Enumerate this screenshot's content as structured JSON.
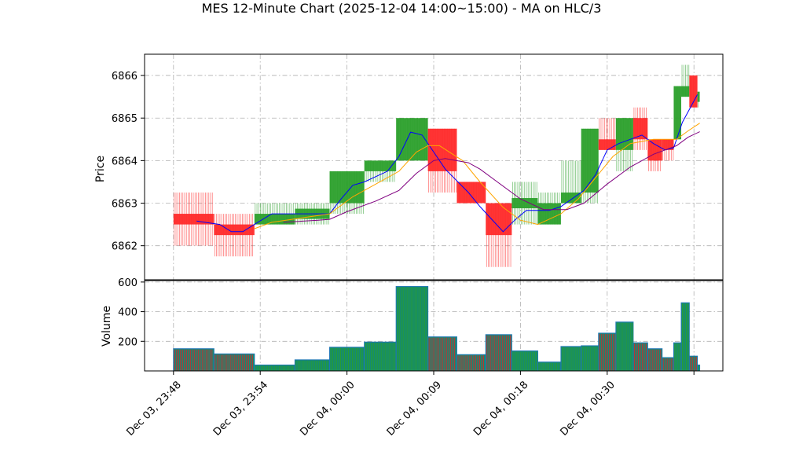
{
  "chart_data": {
    "type": "candlestick-renko-with-ma-and-volume",
    "title": "MES 12-Minute Chart (2025-12-04 14:00~15:00) - MA on HLC/3",
    "price_axis": {
      "ylabel": "Price",
      "ticks": [
        6862,
        6863,
        6864,
        6865,
        6866
      ],
      "ylim": [
        6861.2,
        6866.5
      ]
    },
    "volume_axis": {
      "ylabel": "Volume",
      "ticks": [
        200,
        400,
        600
      ],
      "ylim": [
        0,
        610
      ]
    },
    "x_axis": {
      "xlim": [
        0,
        100
      ],
      "tick_positions": [
        5,
        20,
        35,
        50,
        65,
        80,
        95
      ],
      "tick_labels": [
        "Dec 03, 23:48",
        "Dec 03, 23:54",
        "Dec 04, 00:00",
        "Dec 04, 00:09",
        "Dec 04, 00:18",
        "Dec 04, 00:30",
        ""
      ]
    },
    "colors": {
      "up": "#2ca02c",
      "down": "#ff2a2a",
      "ma_fast": "#0000ff",
      "ma_mid": "#ffa500",
      "ma_slow": "#800080",
      "vol_edge": "#1f77b4",
      "vol_up_line": "#2ca02c",
      "vol_down_line": "#d62728"
    },
    "bars": [
      {
        "x0": 5.0,
        "x1": 12.0,
        "open": 6862.75,
        "close": 6862.5,
        "high": 6863.25,
        "low": 6862.0,
        "volume": 150
      },
      {
        "x0": 12.0,
        "x1": 19.0,
        "open": 6862.5,
        "close": 6862.25,
        "high": 6862.75,
        "low": 6861.75,
        "volume": 115
      },
      {
        "x0": 19.0,
        "x1": 26.0,
        "open": 6862.5,
        "close": 6862.75,
        "high": 6863.0,
        "low": 6862.5,
        "volume": 40
      },
      {
        "x0": 26.0,
        "x1": 32.0,
        "open": 6862.75,
        "close": 6862.75,
        "high": 6863.0,
        "low": 6862.5,
        "volume": 75
      },
      {
        "x0": 32.0,
        "x1": 38.0,
        "open": 6863.0,
        "close": 6863.75,
        "high": 6863.75,
        "low": 6862.75,
        "volume": 160
      },
      {
        "x0": 38.0,
        "x1": 43.5,
        "open": 6863.75,
        "close": 6864.0,
        "high": 6864.0,
        "low": 6863.5,
        "volume": 195
      },
      {
        "x0": 43.5,
        "x1": 49.0,
        "open": 6864.0,
        "close": 6865.0,
        "high": 6865.0,
        "low": 6864.0,
        "volume": 570
      },
      {
        "x0": 49.0,
        "x1": 54.0,
        "open": 6864.75,
        "close": 6863.75,
        "high": 6864.75,
        "low": 6863.25,
        "volume": 230
      },
      {
        "x0": 54.0,
        "x1": 59.0,
        "open": 6863.5,
        "close": 6863.0,
        "high": 6863.5,
        "low": 6863.0,
        "volume": 110
      },
      {
        "x0": 59.0,
        "x1": 63.5,
        "open": 6863.0,
        "close": 6862.25,
        "high": 6863.0,
        "low": 6861.5,
        "volume": 245
      },
      {
        "x0": 63.5,
        "x1": 68.0,
        "open": 6863.0,
        "close": 6863.0,
        "high": 6863.5,
        "low": 6862.5,
        "volume": 135
      },
      {
        "x0": 68.0,
        "x1": 72.0,
        "open": 6862.5,
        "close": 6863.0,
        "high": 6863.25,
        "low": 6862.5,
        "volume": 60
      },
      {
        "x0": 72.0,
        "x1": 75.5,
        "open": 6863.0,
        "close": 6863.25,
        "high": 6864.0,
        "low": 6863.0,
        "volume": 165
      },
      {
        "x0": 75.5,
        "x1": 78.5,
        "open": 6863.25,
        "close": 6864.75,
        "high": 6864.75,
        "low": 6863.0,
        "volume": 170
      },
      {
        "x0": 78.5,
        "x1": 81.5,
        "open": 6864.5,
        "close": 6864.25,
        "high": 6865.0,
        "low": 6864.25,
        "volume": 255
      },
      {
        "x0": 81.5,
        "x1": 84.5,
        "open": 6864.25,
        "close": 6865.0,
        "high": 6865.0,
        "low": 6863.75,
        "volume": 330
      },
      {
        "x0": 84.5,
        "x1": 87.0,
        "open": 6865.0,
        "close": 6864.5,
        "high": 6865.25,
        "low": 6864.25,
        "volume": 190
      },
      {
        "x0": 87.0,
        "x1": 89.5,
        "open": 6864.5,
        "close": 6864.0,
        "high": 6864.5,
        "low": 6863.75,
        "volume": 150
      },
      {
        "x0": 89.5,
        "x1": 91.5,
        "open": 6864.5,
        "close": 6864.25,
        "high": 6864.5,
        "low": 6864.0,
        "volume": 90
      },
      {
        "x0": 91.5,
        "x1": 92.8,
        "open": 6864.5,
        "close": 6865.75,
        "high": 6865.75,
        "low": 6864.5,
        "volume": 190
      },
      {
        "x0": 92.8,
        "x1": 94.2,
        "open": 6865.5,
        "close": 6865.75,
        "high": 6866.25,
        "low": 6865.5,
        "volume": 460
      },
      {
        "x0": 94.2,
        "x1": 95.6,
        "open": 6866.0,
        "close": 6865.25,
        "high": 6866.0,
        "low": 6865.25,
        "volume": 100
      },
      {
        "x0": 95.6,
        "x1": 96.0,
        "open": 6865.5,
        "close": 6865.5,
        "high": 6865.5,
        "low": 6865.25,
        "volume": 40
      }
    ],
    "ma_series": [
      {
        "color": "#0000ff",
        "points": [
          [
            9,
            6862.58
          ],
          [
            13,
            6862.5
          ],
          [
            15,
            6862.33
          ],
          [
            17,
            6862.33
          ],
          [
            19,
            6862.5
          ],
          [
            22,
            6862.75
          ],
          [
            27,
            6862.75
          ],
          [
            32,
            6862.75
          ],
          [
            34,
            6863.1
          ],
          [
            36,
            6863.42
          ],
          [
            38,
            6863.5
          ],
          [
            42,
            6863.75
          ],
          [
            44,
            6864.1
          ],
          [
            46,
            6864.67
          ],
          [
            48,
            6864.6
          ],
          [
            50,
            6864.2
          ],
          [
            52,
            6863.8
          ],
          [
            56,
            6863.25
          ],
          [
            58,
            6862.92
          ],
          [
            62,
            6862.33
          ],
          [
            64,
            6862.6
          ],
          [
            66,
            6862.83
          ],
          [
            70,
            6862.83
          ],
          [
            72,
            6862.92
          ],
          [
            76,
            6863.3
          ],
          [
            78,
            6863.67
          ],
          [
            80,
            6864.25
          ],
          [
            82,
            6864.4
          ],
          [
            84,
            6864.5
          ],
          [
            86,
            6864.6
          ],
          [
            88,
            6864.4
          ],
          [
            90,
            6864.25
          ],
          [
            91.5,
            6864.3
          ],
          [
            93,
            6864.9
          ],
          [
            95.6,
            6865.55
          ]
        ]
      },
      {
        "color": "#ffa500",
        "points": [
          [
            19,
            6862.4
          ],
          [
            22,
            6862.55
          ],
          [
            27,
            6862.65
          ],
          [
            32,
            6862.75
          ],
          [
            36,
            6863.15
          ],
          [
            40,
            6863.45
          ],
          [
            44,
            6863.75
          ],
          [
            47,
            6864.2
          ],
          [
            49,
            6864.35
          ],
          [
            51,
            6864.35
          ],
          [
            55,
            6864.0
          ],
          [
            58,
            6863.5
          ],
          [
            62,
            6862.9
          ],
          [
            65,
            6862.6
          ],
          [
            68,
            6862.5
          ],
          [
            72,
            6862.75
          ],
          [
            75,
            6863.1
          ],
          [
            78,
            6863.6
          ],
          [
            81,
            6864.1
          ],
          [
            84,
            6864.4
          ],
          [
            88,
            6864.5
          ],
          [
            92,
            6864.5
          ],
          [
            94,
            6864.7
          ],
          [
            96,
            6864.88
          ]
        ]
      },
      {
        "color": "#800080",
        "points": [
          [
            24,
            6862.55
          ],
          [
            30,
            6862.6
          ],
          [
            32,
            6862.62
          ],
          [
            35,
            6862.8
          ],
          [
            40,
            6863.05
          ],
          [
            44,
            6863.3
          ],
          [
            47,
            6863.7
          ],
          [
            50,
            6864.0
          ],
          [
            52,
            6864.05
          ],
          [
            56,
            6863.95
          ],
          [
            58,
            6863.8
          ],
          [
            61,
            6863.5
          ],
          [
            65,
            6863.1
          ],
          [
            69,
            6862.85
          ],
          [
            73,
            6862.85
          ],
          [
            76,
            6863.0
          ],
          [
            80,
            6863.45
          ],
          [
            84,
            6863.85
          ],
          [
            88,
            6864.15
          ],
          [
            92,
            6864.35
          ],
          [
            94,
            6864.55
          ],
          [
            96,
            6864.68
          ]
        ]
      }
    ]
  }
}
